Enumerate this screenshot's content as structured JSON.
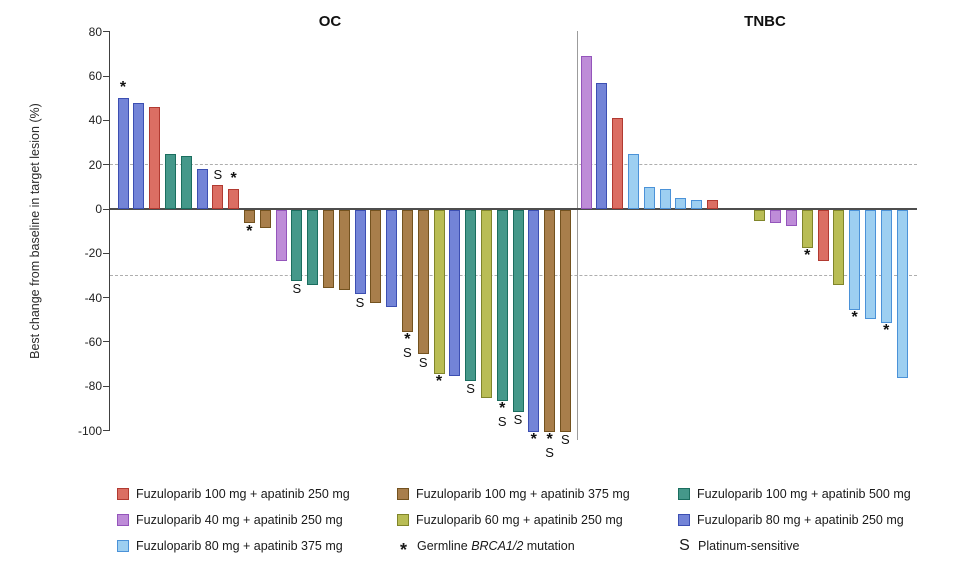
{
  "chart_data": {
    "type": "bar",
    "subtype": "waterfall",
    "ylabel": "Best change from baseline in target lesion (%)",
    "ylim": [
      -100,
      80
    ],
    "yticks": [
      80,
      60,
      40,
      20,
      0,
      -20,
      -40,
      -60,
      -80,
      -100
    ],
    "reference_lines": [
      20,
      -30
    ],
    "grid": "dashed-reference-only",
    "legend_position": "bottom",
    "colors": {
      "red": {
        "fill": "#DB6E63",
        "stroke": "#B13A31"
      },
      "brown": {
        "fill": "#A87E4B",
        "stroke": "#73521F"
      },
      "teal": {
        "fill": "#45988A",
        "stroke": "#1B6E5F"
      },
      "purple": {
        "fill": "#BE8CD8",
        "stroke": "#9455BB"
      },
      "yellow": {
        "fill": "#B9BD55",
        "stroke": "#80852A"
      },
      "blue": {
        "fill": "#7384D7",
        "stroke": "#3C4FB2"
      },
      "lightblue": {
        "fill": "#9DCFF1",
        "stroke": "#4B92D8"
      }
    },
    "groups": [
      {
        "name": "OC",
        "bars": [
          {
            "value": 50,
            "color": "blue",
            "markers": "*"
          },
          {
            "value": 48,
            "color": "blue",
            "markers": ""
          },
          {
            "value": 46,
            "color": "red",
            "markers": ""
          },
          {
            "value": 25,
            "color": "teal",
            "markers": ""
          },
          {
            "value": 24,
            "color": "teal",
            "markers": ""
          },
          {
            "value": 18,
            "color": "blue",
            "markers": ""
          },
          {
            "value": 11,
            "color": "red",
            "markers": "S"
          },
          {
            "value": 9,
            "color": "red",
            "markers": "*"
          },
          {
            "value": -6,
            "color": "brown",
            "markers": "*"
          },
          {
            "value": -8,
            "color": "brown",
            "markers": ""
          },
          {
            "value": -23,
            "color": "purple",
            "markers": ""
          },
          {
            "value": -32,
            "color": "teal",
            "markers": "S"
          },
          {
            "value": -34,
            "color": "teal",
            "markers": ""
          },
          {
            "value": -35,
            "color": "brown",
            "markers": ""
          },
          {
            "value": -36,
            "color": "brown",
            "markers": ""
          },
          {
            "value": -38,
            "color": "blue",
            "markers": "S"
          },
          {
            "value": -42,
            "color": "brown",
            "markers": ""
          },
          {
            "value": -44,
            "color": "blue",
            "markers": ""
          },
          {
            "value": -55,
            "color": "brown",
            "markers": "*S"
          },
          {
            "value": -65,
            "color": "brown",
            "markers": "S"
          },
          {
            "value": -74,
            "color": "yellow",
            "markers": "*"
          },
          {
            "value": -75,
            "color": "blue",
            "markers": ""
          },
          {
            "value": -77,
            "color": "teal",
            "markers": "S"
          },
          {
            "value": -85,
            "color": "yellow",
            "markers": ""
          },
          {
            "value": -86,
            "color": "teal",
            "markers": "*S"
          },
          {
            "value": -91,
            "color": "teal",
            "markers": "S"
          },
          {
            "value": -100,
            "color": "blue",
            "markers": "*"
          },
          {
            "value": -100,
            "color": "brown",
            "markers": "*S"
          },
          {
            "value": -100,
            "color": "brown",
            "markers": "S"
          }
        ]
      },
      {
        "name": "TNBC",
        "bars": [
          {
            "value": 69,
            "color": "purple",
            "markers": ""
          },
          {
            "value": 57,
            "color": "blue",
            "markers": ""
          },
          {
            "value": 41,
            "color": "red",
            "markers": ""
          },
          {
            "value": 25,
            "color": "lightblue",
            "markers": ""
          },
          {
            "value": 10,
            "color": "lightblue",
            "markers": ""
          },
          {
            "value": 9,
            "color": "lightblue",
            "markers": ""
          },
          {
            "value": 5,
            "color": "lightblue",
            "markers": ""
          },
          {
            "value": 4,
            "color": "lightblue",
            "markers": ""
          },
          {
            "value": 4,
            "color": "red",
            "markers": ""
          },
          {
            "value": 0,
            "color": null,
            "markers": ""
          },
          {
            "value": 0,
            "color": null,
            "markers": ""
          },
          {
            "value": -5,
            "color": "yellow",
            "markers": ""
          },
          {
            "value": -6,
            "color": "purple",
            "markers": ""
          },
          {
            "value": -7,
            "color": "purple",
            "markers": ""
          },
          {
            "value": -17,
            "color": "yellow",
            "markers": "*"
          },
          {
            "value": -23,
            "color": "red",
            "markers": ""
          },
          {
            "value": -34,
            "color": "yellow",
            "markers": ""
          },
          {
            "value": -45,
            "color": "lightblue",
            "markers": "*"
          },
          {
            "value": -49,
            "color": "lightblue",
            "markers": ""
          },
          {
            "value": -51,
            "color": "lightblue",
            "markers": "*"
          },
          {
            "value": -76,
            "color": "lightblue",
            "markers": ""
          }
        ]
      }
    ]
  },
  "legend": {
    "items": [
      {
        "swatch": "red",
        "label": "Fuzuloparib 100 mg + apatinib 250 mg"
      },
      {
        "swatch": "brown",
        "label": "Fuzuloparib 100 mg + apatinib 375 mg"
      },
      {
        "swatch": "teal",
        "label": "Fuzuloparib 100 mg + apatinib 500 mg"
      },
      {
        "swatch": "purple",
        "label": "Fuzuloparib 40 mg + apatinib 250 mg"
      },
      {
        "swatch": "yellow",
        "label": "Fuzuloparib 60 mg + apatinib 250 mg"
      },
      {
        "swatch": "blue",
        "label": "Fuzuloparib 80 mg + apatinib 250 mg"
      },
      {
        "swatch": "lightblue",
        "label": "Fuzuloparib 80 mg + apatinib 375 mg"
      },
      {
        "symbol": "*",
        "label_prefix": "Germline ",
        "label_italic": "BRCA1/2",
        "label_suffix": " mutation"
      },
      {
        "symbol": "S",
        "label": "Platinum-sensitive"
      }
    ]
  }
}
